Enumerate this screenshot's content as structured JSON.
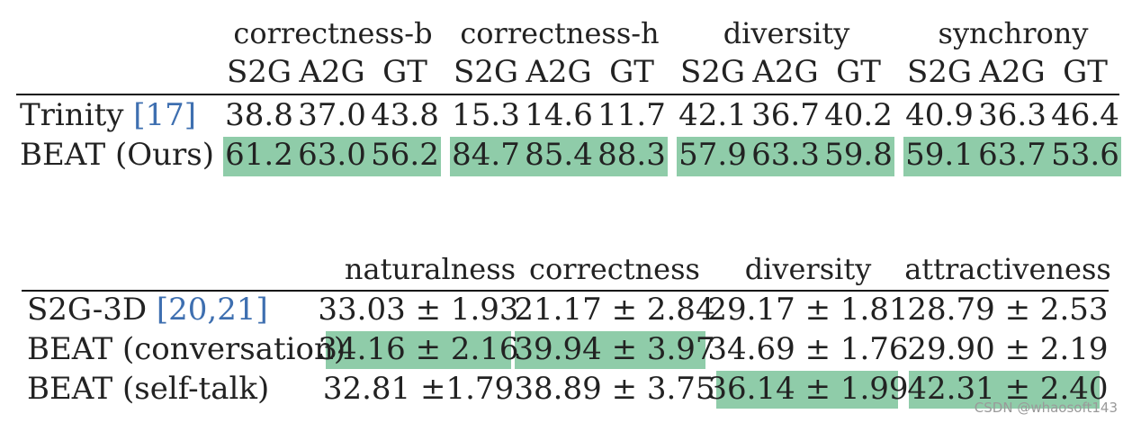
{
  "table1": {
    "groups": [
      "correctness-b",
      "correctness-h",
      "diversity",
      "synchrony"
    ],
    "subheaders": [
      "S2G",
      "A2G",
      "GT"
    ],
    "rows": [
      {
        "label": "Trinity ",
        "cite": "[17]",
        "cite_close": "",
        "values": [
          "38.8",
          "37.0",
          "43.8",
          "15.3",
          "14.6",
          "11.7",
          "42.1",
          "36.7",
          "40.2",
          "40.9",
          "36.3",
          "46.4"
        ]
      },
      {
        "label": "BEAT (Ours)",
        "cite": "",
        "cite_close": "",
        "values": [
          "61.2",
          "63.0",
          "56.2",
          "84.7",
          "85.4",
          "88.3",
          "57.9",
          "63.3",
          "59.8",
          "59.1",
          "63.7",
          "53.6"
        ]
      }
    ]
  },
  "table2": {
    "headers": [
      "naturalness",
      "correctness",
      "diversity",
      "attractiveness"
    ],
    "rows": [
      {
        "label": "S2G-3D ",
        "cite": "[20,21]",
        "values": [
          "33.03 ± 1.93",
          "21.17 ± 2.84",
          "29.17 ± 1.81",
          "28.79 ± 2.53"
        ]
      },
      {
        "label": "BEAT (conversation)",
        "cite": "",
        "values": [
          "34.16 ± 2.16",
          "39.94 ± 3.97",
          "34.69 ± 1.76",
          "29.90 ± 2.19"
        ]
      },
      {
        "label": "BEAT (self-talk)",
        "cite": "",
        "values": [
          "32.81 ±1.79",
          "38.89 ± 3.75",
          "36.14 ± 1.99",
          "42.31 ± 2.40"
        ]
      }
    ]
  },
  "watermark": "CSDN @whaosoft143",
  "colors": {
    "highlight": "#8fcca9",
    "citation": "#3e6fb0"
  }
}
